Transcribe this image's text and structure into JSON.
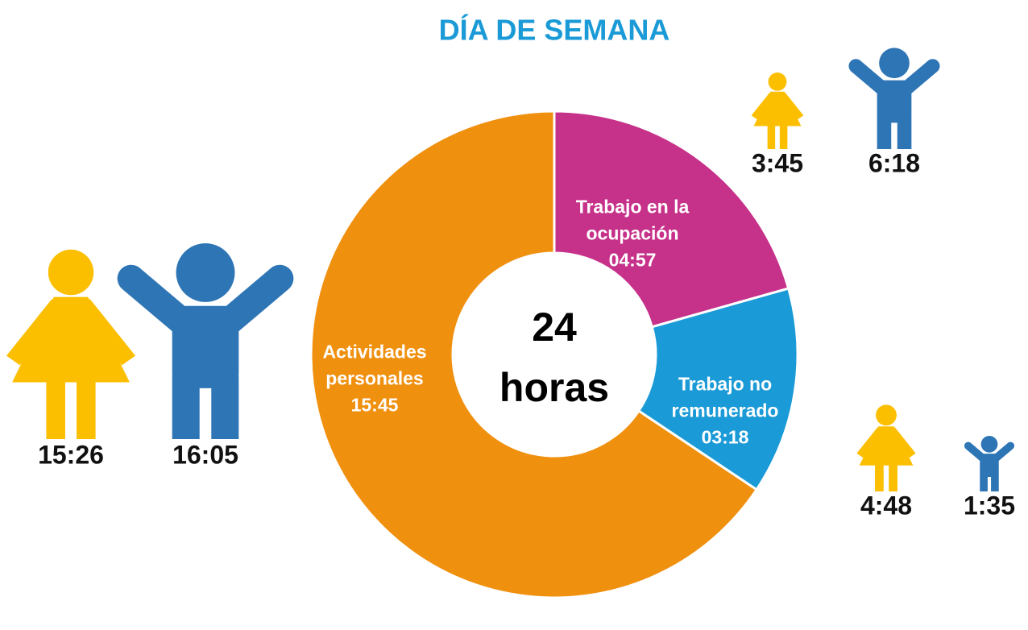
{
  "chart_data": {
    "type": "pie",
    "title": "DÍA DE SEMANA",
    "categories": [
      "Trabajo en la ocupación",
      "Trabajo no remunerado",
      "Actividades personales"
    ],
    "values": [
      4.95,
      3.3,
      15.75
    ],
    "value_labels": [
      "04:57",
      "03:18",
      "15:45"
    ],
    "colors": [
      "#c6318a",
      "#1a9ad6",
      "#f0900f"
    ],
    "donut": true,
    "total": 24,
    "total_unit": "horas",
    "breakdown": [
      {
        "values": [
          3.75,
          6.3
        ],
        "value_labels": [
          "3:45",
          "6:18"
        ]
      },
      {
        "values": [
          4.8,
          1.5833
        ],
        "value_labels": [
          "4:48",
          "1:35"
        ]
      },
      {
        "values": [
          15.4333,
          16.0833
        ],
        "value_labels": [
          "15:26",
          "16:05"
        ]
      }
    ],
    "figure_colors": [
      "#fbbf00",
      "#2e75b6"
    ]
  }
}
